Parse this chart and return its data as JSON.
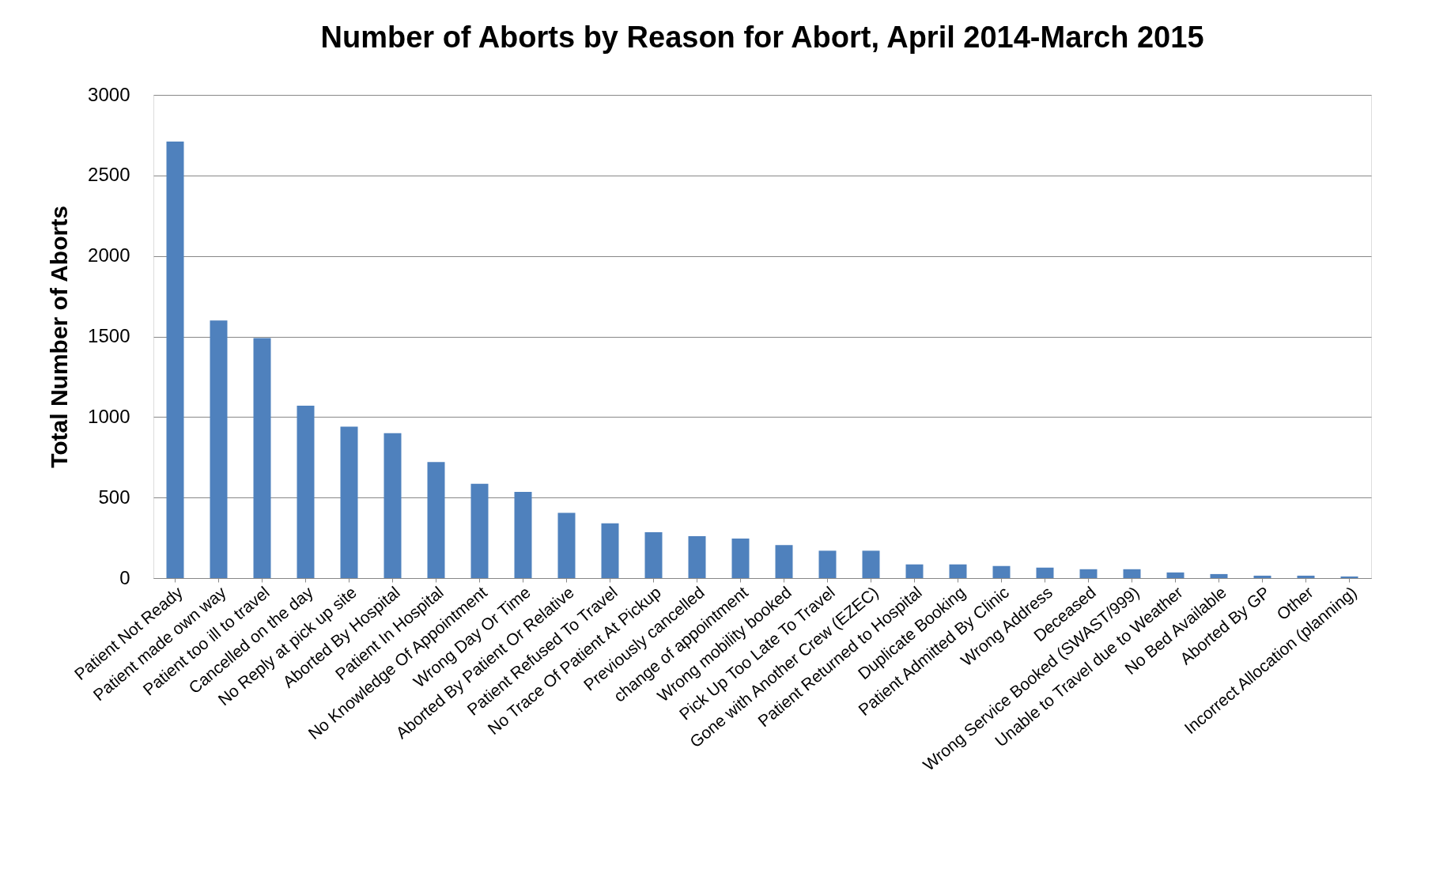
{
  "chart_data": {
    "type": "bar",
    "title": "Number of Aborts by Reason for Abort, April 2014-March 2015",
    "ylabel": "Total Number of Aborts",
    "categories": [
      "Patient Not Ready",
      "Patient made own way",
      "Patient too ill to travel",
      "Cancelled on the day",
      "No Reply at pick up site",
      "Aborted By Hospital",
      "Patient In Hospital",
      "No Knowledge Of Appointment",
      "Wrong Day Or Time",
      "Aborted By Patient Or Relative",
      "Patient Refused To Travel",
      "No Trace Of Patient At Pickup",
      "Previously cancelled",
      "change of appointment",
      "Wrong mobility booked",
      "Pick Up Too Late To Travel",
      "Gone with Another Crew (EZEC)",
      "Patient Returned to Hospital",
      "Duplicate Booking",
      "Patient Admitted By Clinic",
      "Wrong Address",
      "Deceased",
      "Wrong Service Booked (SWAST/999)",
      "Unable to Travel due to Weather",
      "No Bed Available",
      "Aborted By GP",
      "Other",
      "Incorrect Allocation (planning)"
    ],
    "values": [
      2710,
      1600,
      1490,
      1070,
      940,
      900,
      720,
      585,
      535,
      405,
      340,
      285,
      260,
      245,
      205,
      170,
      170,
      85,
      85,
      75,
      65,
      55,
      55,
      35,
      25,
      15,
      15,
      10
    ],
    "color": "#4f81bd",
    "ylim": [
      0,
      3000
    ],
    "yticks": [
      0,
      500,
      1000,
      1500,
      2000,
      2500,
      3000
    ],
    "grid": "y"
  }
}
